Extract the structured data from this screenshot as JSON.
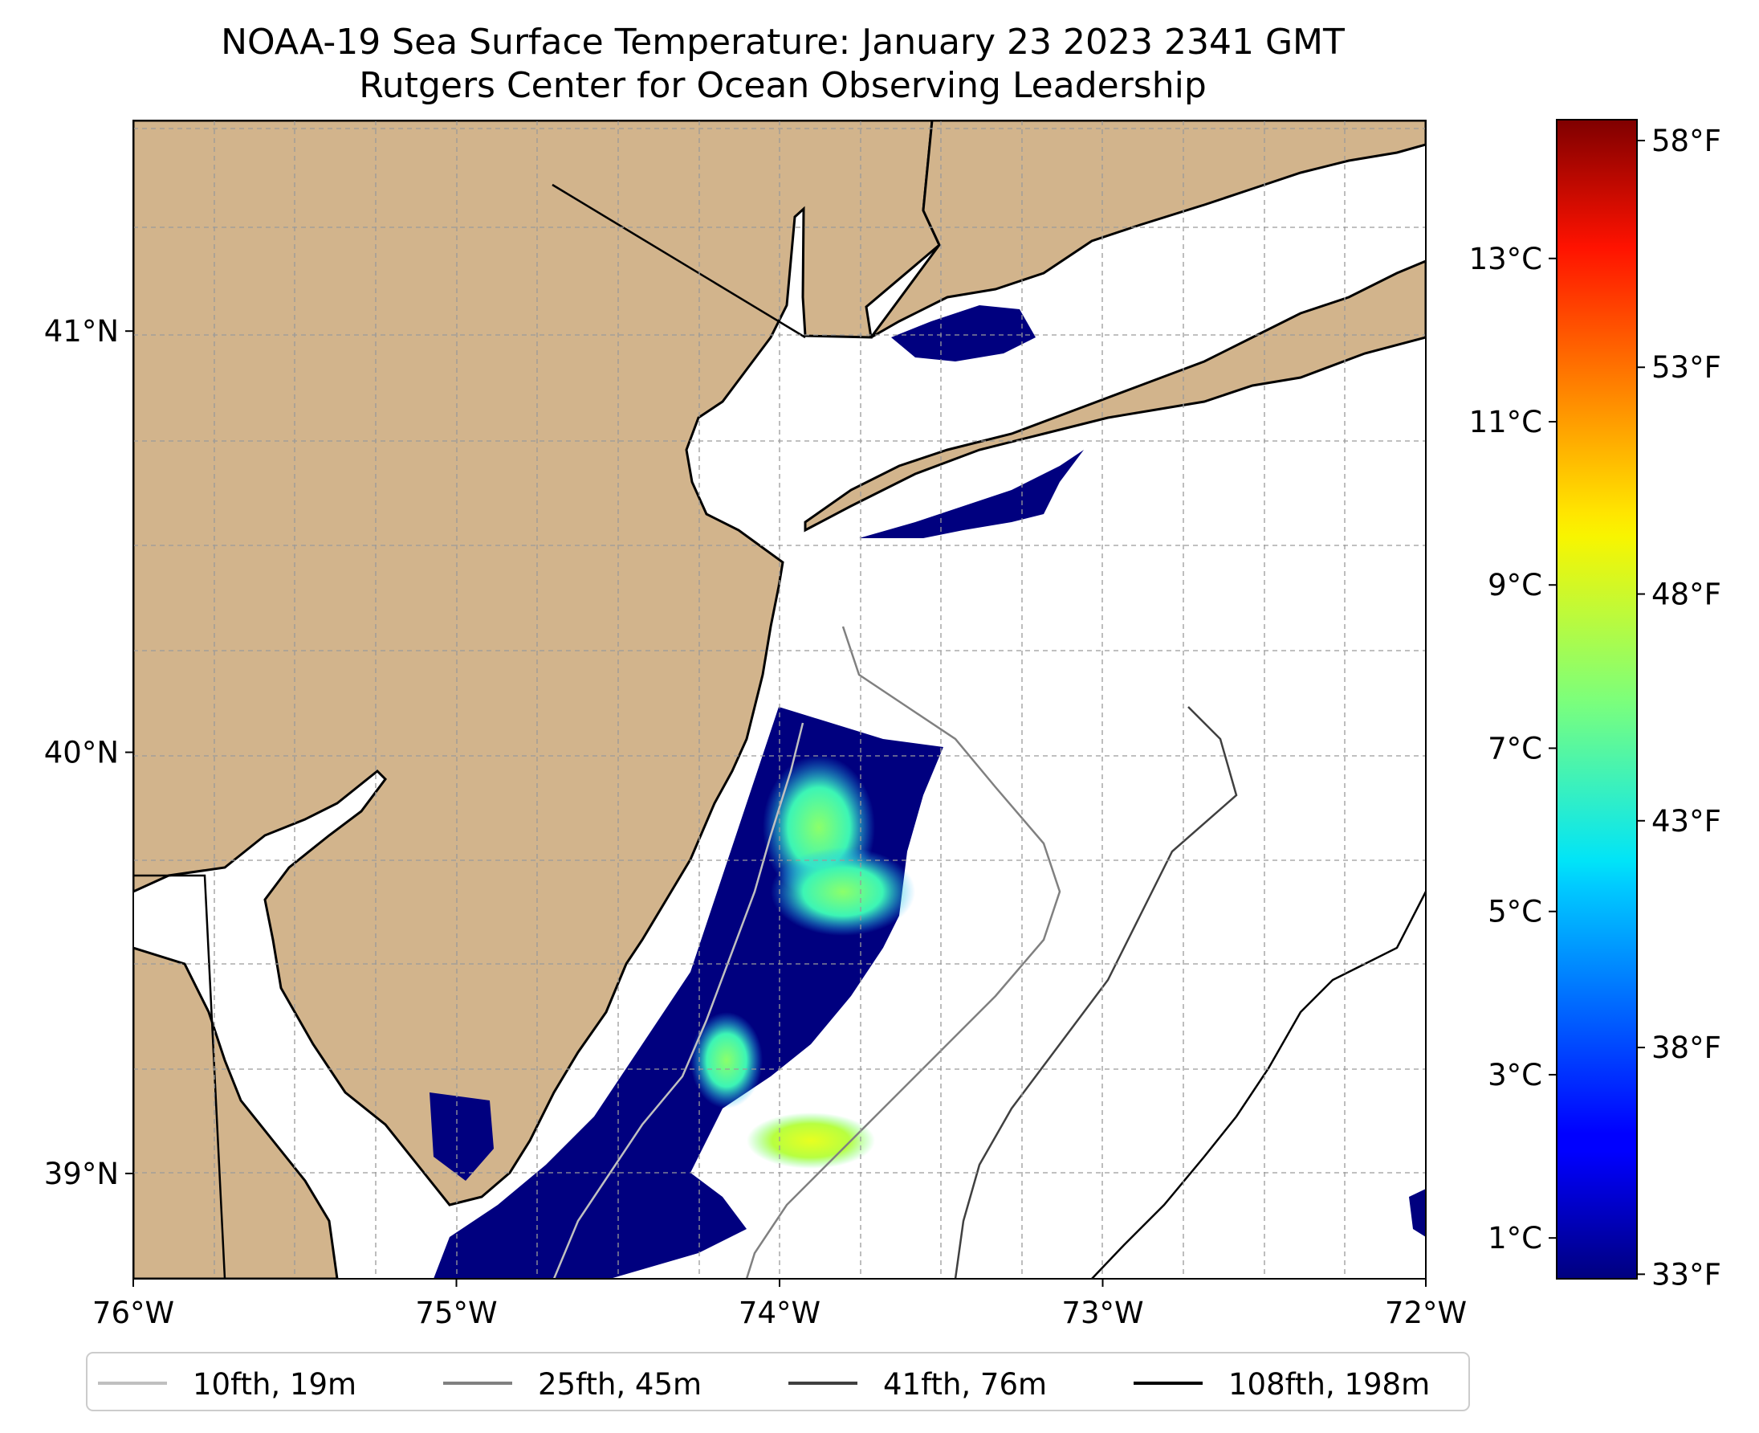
{
  "title": "NOAA-19 Sea Surface Temperature: January 23 2023 2341 GMT",
  "subtitle": "Rutgers Center for Ocean Observing Leadership",
  "map": {
    "lon_range": [
      -76,
      -72
    ],
    "lat_range": [
      38.75,
      41.5
    ],
    "land_color": "#d2b48c",
    "ocean_color": "#ffffff",
    "gridlines": true,
    "lon_ticks": [
      {
        "value": -76,
        "label": "76°W"
      },
      {
        "value": -75,
        "label": "75°W"
      },
      {
        "value": -74,
        "label": "74°W"
      },
      {
        "value": -73,
        "label": "73°W"
      },
      {
        "value": -72,
        "label": "72°W"
      }
    ],
    "lat_ticks": [
      {
        "value": 41,
        "label": "41°N"
      },
      {
        "value": 40,
        "label": "40°N"
      },
      {
        "value": 39,
        "label": "39°N"
      }
    ]
  },
  "colorbar": {
    "colormap": "jet",
    "range_c": [
      0.5,
      14.7
    ],
    "celsius_ticks": [
      {
        "value": 1,
        "label": "1°C"
      },
      {
        "value": 3,
        "label": "3°C"
      },
      {
        "value": 5,
        "label": "5°C"
      },
      {
        "value": 7,
        "label": "7°C"
      },
      {
        "value": 9,
        "label": "9°C"
      },
      {
        "value": 11,
        "label": "11°C"
      },
      {
        "value": 13,
        "label": "13°C"
      }
    ],
    "fahrenheit_ticks": [
      {
        "value": 33,
        "label": "33°F"
      },
      {
        "value": 38,
        "label": "38°F"
      },
      {
        "value": 43,
        "label": "43°F"
      },
      {
        "value": 48,
        "label": "48°F"
      },
      {
        "value": 53,
        "label": "53°F"
      },
      {
        "value": 58,
        "label": "58°F"
      }
    ]
  },
  "legend": [
    {
      "label": "10fth, 19m",
      "color": "#c0c0c0"
    },
    {
      "label": "25fth, 45m",
      "color": "#808080"
    },
    {
      "label": "41fth, 76m",
      "color": "#404040"
    },
    {
      "label": "108fth, 198m",
      "color": "#000000"
    }
  ]
}
